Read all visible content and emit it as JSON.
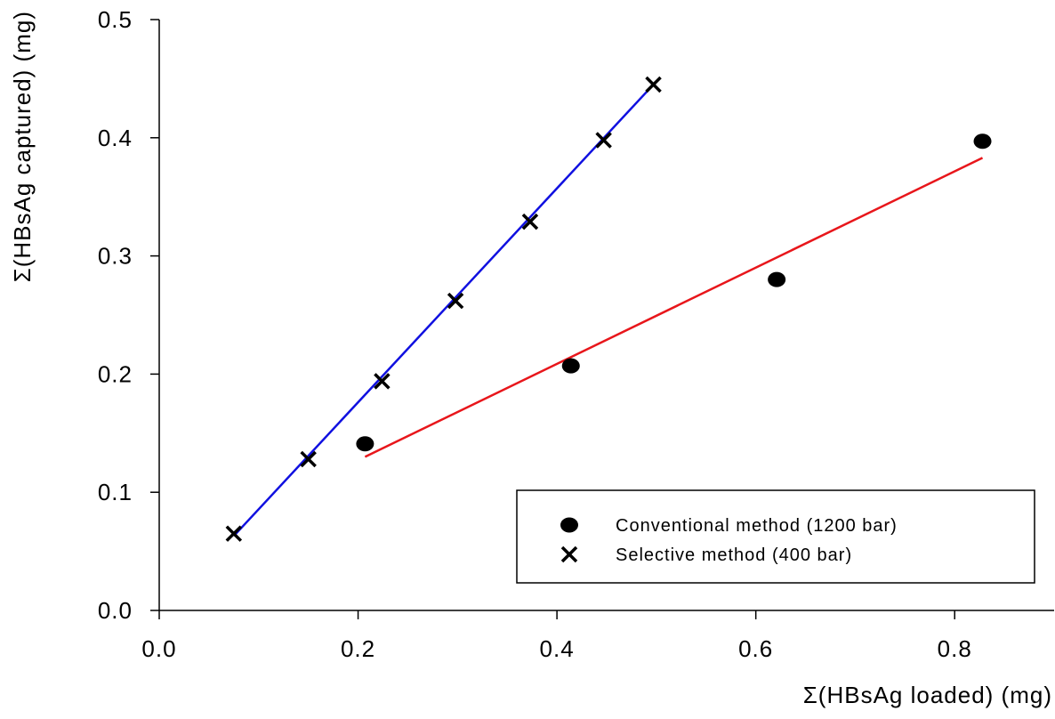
{
  "chart_data": {
    "type": "scatter",
    "title": "",
    "xlabel": "Σ(HBsAg loaded) (mg)",
    "ylabel": "Σ(HBsAg captured) (mg)",
    "xlim": [
      0.0,
      0.9
    ],
    "ylim": [
      0.0,
      0.5
    ],
    "x_ticks": [
      "0.0",
      "0.2",
      "0.4",
      "0.6",
      "0.8"
    ],
    "x_tick_values": [
      0.0,
      0.2,
      0.4,
      0.6,
      0.8
    ],
    "y_ticks": [
      "0.0",
      "0.1",
      "0.2",
      "0.3",
      "0.4",
      "0.5"
    ],
    "y_tick_values": [
      0.0,
      0.1,
      0.2,
      0.3,
      0.4,
      0.5
    ],
    "grid": false,
    "legend_position": "bottom-right",
    "series": [
      {
        "name": "Conventional method (1200 bar)",
        "marker": "circle",
        "x": [
          0.207,
          0.414,
          0.621,
          0.828
        ],
        "y": [
          0.141,
          0.207,
          0.28,
          0.397
        ],
        "fit_line": {
          "x": [
            0.207,
            0.828
          ],
          "y": [
            0.13,
            0.383
          ],
          "color": "#e8161b"
        }
      },
      {
        "name": "Selective method (400 bar)",
        "marker": "x",
        "x": [
          0.075,
          0.15,
          0.224,
          0.298,
          0.373,
          0.447,
          0.497
        ],
        "y": [
          0.065,
          0.128,
          0.194,
          0.262,
          0.329,
          0.398,
          0.445
        ],
        "fit_line": {
          "x": [
            0.075,
            0.497
          ],
          "y": [
            0.063,
            0.445
          ],
          "color": "#1010e0"
        }
      }
    ]
  }
}
